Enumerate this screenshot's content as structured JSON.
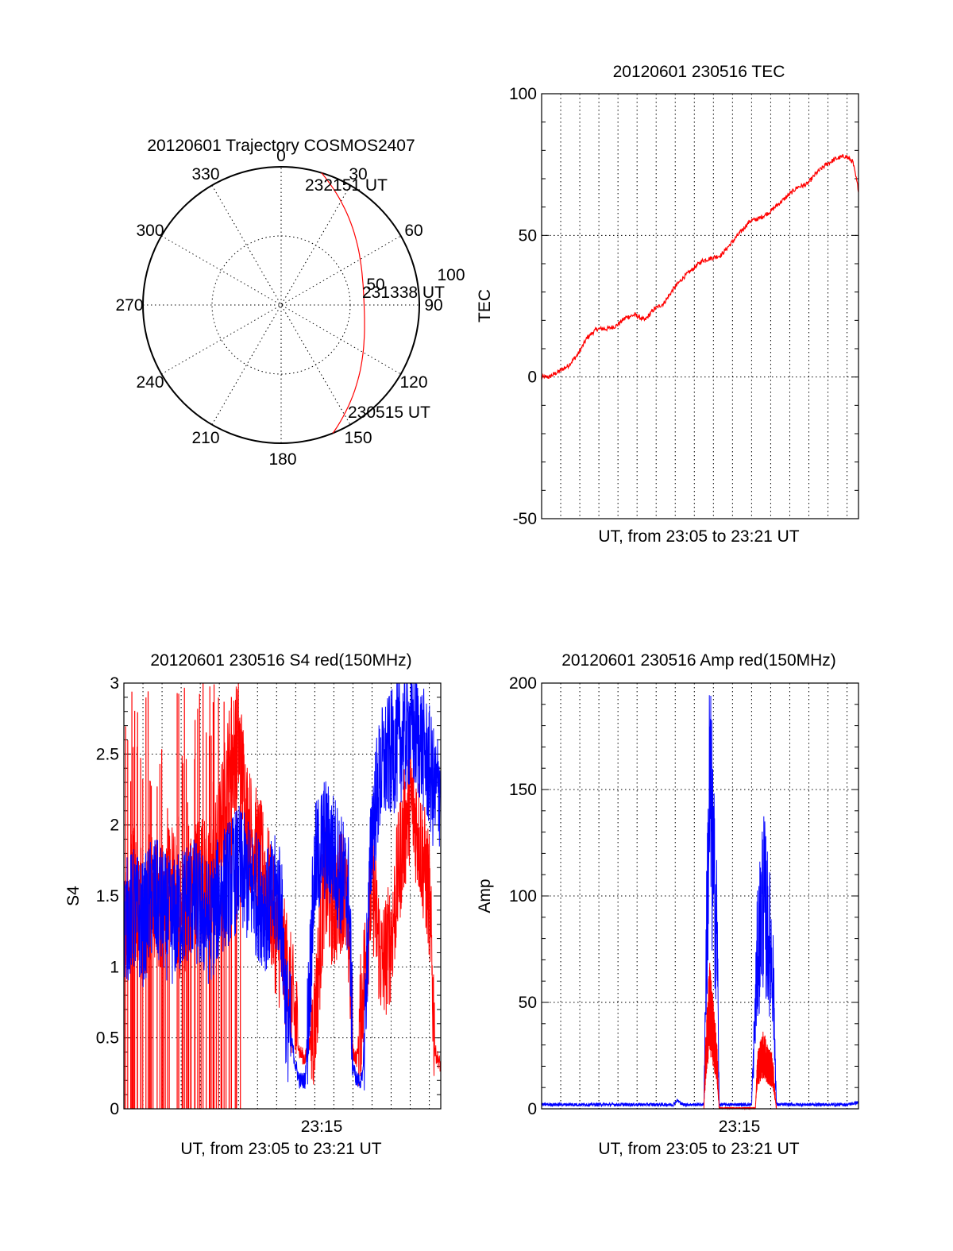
{
  "chart_data": [
    {
      "id": "trajectory",
      "type": "polar",
      "title": "20120601 Trajectory COSMOS2407",
      "angle_labels": [
        "0",
        "30",
        "60",
        "90",
        "120",
        "150",
        "180",
        "210",
        "240",
        "270",
        "300",
        "330"
      ],
      "radial_labels": [
        "50",
        "100"
      ],
      "colors": {
        "track": "#ff0000",
        "axes": "#000000"
      },
      "track": {
        "start_az": 158,
        "end_az": 17,
        "start_r": 100,
        "mid_r": 60,
        "end_r": 100
      },
      "annotations": [
        {
          "text": "232151 UT",
          "point": "end"
        },
        {
          "text": "231338 UT",
          "point": "closest"
        },
        {
          "text": "230515 UT",
          "point": "start"
        }
      ]
    },
    {
      "id": "tec",
      "type": "line",
      "title": "20120601 230516 TEC",
      "xlabel": "UT, from 23:05 to 23:21 UT",
      "ylabel": "TEC",
      "ylim": [
        -50,
        100
      ],
      "yticks": [
        "-50",
        "0",
        "50",
        "100"
      ],
      "xlim": [
        0,
        16.6
      ],
      "series": [
        {
          "color": "#ff0000",
          "x": [
            0,
            0.4,
            0.9,
            1.4,
            1.9,
            2.4,
            2.9,
            3.4,
            3.9,
            4.4,
            4.9,
            5.4,
            5.9,
            6.4,
            6.9,
            7.4,
            7.9,
            8.4,
            8.9,
            9.4,
            9.9,
            10.4,
            10.9,
            11.4,
            11.9,
            12.4,
            12.9,
            13.4,
            13.9,
            14.4,
            14.9,
            15.4,
            15.9,
            16.3,
            16.6
          ],
          "values": [
            0,
            0,
            2,
            4,
            8,
            14,
            17,
            17,
            18,
            21,
            22,
            20,
            24,
            26,
            31,
            35,
            38,
            41,
            42,
            43,
            47,
            51,
            55,
            56,
            58,
            61,
            64,
            67,
            68,
            72,
            75,
            77,
            78,
            76,
            66
          ]
        }
      ]
    },
    {
      "id": "s4",
      "type": "line",
      "title": "20120601 230516 S4 red(150MHz)",
      "xlabel": "UT, from 23:05 to 23:21 UT",
      "ylabel": "S4",
      "ylim": [
        0,
        3
      ],
      "yticks": [
        "0",
        "0.5",
        "1",
        "1.5",
        "2",
        "2.5",
        "3"
      ],
      "xtick_label": "23:15",
      "xlim": [
        0,
        16.6
      ],
      "series": [
        {
          "color": "#ff0000",
          "x": [
            0,
            0.5,
            1,
            1.5,
            2,
            2.5,
            3,
            3.5,
            4,
            4.5,
            5,
            5.5,
            6,
            6.5,
            7,
            7.5,
            8,
            8.5,
            9,
            9.2,
            9.5,
            10,
            10.5,
            11,
            11.5,
            11.8,
            12,
            12.2,
            12.5,
            13,
            13.5,
            14,
            14.5,
            15,
            15.5,
            16,
            16.3,
            16.6
          ],
          "values": [
            1.3,
            1.6,
            1.3,
            1.5,
            1.4,
            1.6,
            1.3,
            1.5,
            1.7,
            1.5,
            1.9,
            2.4,
            2.6,
            2.0,
            1.8,
            1.6,
            1.2,
            1.0,
            0.6,
            0.4,
            0.35,
            0.6,
            1.6,
            1.4,
            1.6,
            1.2,
            0.4,
            0.35,
            0.8,
            1.6,
            1.0,
            1.2,
            1.8,
            2.2,
            1.9,
            1.5,
            0.4,
            0.3
          ]
        },
        {
          "color": "#0000ff",
          "x": [
            0,
            0.5,
            1,
            1.5,
            2,
            2.5,
            3,
            3.5,
            4,
            4.5,
            5,
            5.5,
            6,
            6.5,
            7,
            7.5,
            8,
            8.2,
            8.5,
            9,
            9.2,
            9.5,
            10,
            10.5,
            11,
            11.5,
            11.8,
            12,
            12.2,
            12.5,
            13,
            13.5,
            14,
            14.5,
            15,
            15.5,
            16,
            16.3,
            16.6
          ],
          "values": [
            1.3,
            1.4,
            1.3,
            1.5,
            1.4,
            1.3,
            1.4,
            1.5,
            1.4,
            1.3,
            1.5,
            1.6,
            1.7,
            1.6,
            1.5,
            1.4,
            1.5,
            1.5,
            0.7,
            0.3,
            0.2,
            0.2,
            1.7,
            1.9,
            1.8,
            1.6,
            1.5,
            0.3,
            0.2,
            0.2,
            2.0,
            2.4,
            2.5,
            2.6,
            2.7,
            2.6,
            2.4,
            2.2,
            2.3
          ]
        }
      ]
    },
    {
      "id": "amp",
      "type": "line",
      "title": "20120601 230516 Amp red(150MHz)",
      "xlabel": "UT, from 23:05 to 23:21 UT",
      "ylabel": "Amp",
      "ylim": [
        0,
        200
      ],
      "yticks": [
        "0",
        "50",
        "100",
        "150",
        "200"
      ],
      "xtick_label": "23:15",
      "xlim": [
        0,
        16.6
      ],
      "series": [
        {
          "color": "#0000ff",
          "x": [
            0,
            2,
            4,
            6,
            6.9,
            7.1,
            7.4,
            8,
            8.5,
            8.6,
            8.8,
            9.0,
            9.2,
            9.3,
            9.6,
            10,
            10.8,
            11,
            11.3,
            11.6,
            11.9,
            12.1,
            12.3,
            12.6,
            13,
            14,
            15,
            16,
            16.6
          ],
          "values": [
            2,
            2,
            2,
            2,
            2,
            4,
            2,
            2,
            2,
            60,
            150,
            110,
            80,
            2,
            2,
            2,
            2,
            2,
            70,
            100,
            80,
            70,
            2,
            2,
            2,
            2,
            2,
            2,
            3
          ]
        },
        {
          "color": "#ff0000",
          "x": [
            8.5,
            8.6,
            8.8,
            9.0,
            9.2,
            9.3,
            11.2,
            11.3,
            11.6,
            11.9,
            12.1,
            12.3
          ],
          "values": [
            0,
            25,
            48,
            35,
            20,
            0,
            0,
            18,
            26,
            20,
            18,
            0
          ]
        }
      ]
    }
  ]
}
